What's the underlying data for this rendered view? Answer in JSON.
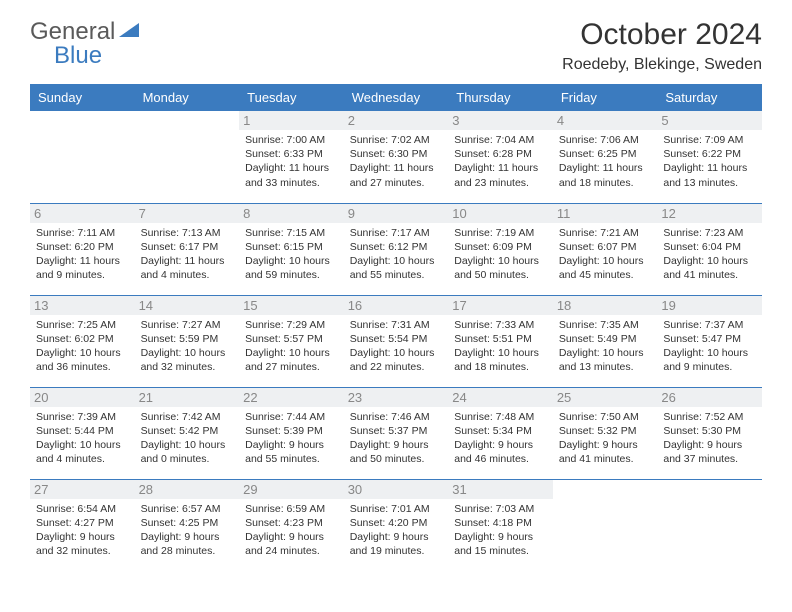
{
  "brand": {
    "text1": "General",
    "text2": "Blue",
    "color1": "#5a5a5a",
    "color2": "#3b7bbf"
  },
  "title": "October 2024",
  "location": "Roedeby, Blekinge, Sweden",
  "header_bg": "#3b7bbf",
  "header_fg": "#ffffff",
  "daynum_bg": "#eef0f2",
  "daynum_fg": "#888888",
  "border_color": "#3b7bbf",
  "day_names": [
    "Sunday",
    "Monday",
    "Tuesday",
    "Wednesday",
    "Thursday",
    "Friday",
    "Saturday"
  ],
  "weeks": [
    [
      null,
      null,
      {
        "n": "1",
        "sr": "7:00 AM",
        "ss": "6:33 PM",
        "dl": "11 hours and 33 minutes."
      },
      {
        "n": "2",
        "sr": "7:02 AM",
        "ss": "6:30 PM",
        "dl": "11 hours and 27 minutes."
      },
      {
        "n": "3",
        "sr": "7:04 AM",
        "ss": "6:28 PM",
        "dl": "11 hours and 23 minutes."
      },
      {
        "n": "4",
        "sr": "7:06 AM",
        "ss": "6:25 PM",
        "dl": "11 hours and 18 minutes."
      },
      {
        "n": "5",
        "sr": "7:09 AM",
        "ss": "6:22 PM",
        "dl": "11 hours and 13 minutes."
      }
    ],
    [
      {
        "n": "6",
        "sr": "7:11 AM",
        "ss": "6:20 PM",
        "dl": "11 hours and 9 minutes."
      },
      {
        "n": "7",
        "sr": "7:13 AM",
        "ss": "6:17 PM",
        "dl": "11 hours and 4 minutes."
      },
      {
        "n": "8",
        "sr": "7:15 AM",
        "ss": "6:15 PM",
        "dl": "10 hours and 59 minutes."
      },
      {
        "n": "9",
        "sr": "7:17 AM",
        "ss": "6:12 PM",
        "dl": "10 hours and 55 minutes."
      },
      {
        "n": "10",
        "sr": "7:19 AM",
        "ss": "6:09 PM",
        "dl": "10 hours and 50 minutes."
      },
      {
        "n": "11",
        "sr": "7:21 AM",
        "ss": "6:07 PM",
        "dl": "10 hours and 45 minutes."
      },
      {
        "n": "12",
        "sr": "7:23 AM",
        "ss": "6:04 PM",
        "dl": "10 hours and 41 minutes."
      }
    ],
    [
      {
        "n": "13",
        "sr": "7:25 AM",
        "ss": "6:02 PM",
        "dl": "10 hours and 36 minutes."
      },
      {
        "n": "14",
        "sr": "7:27 AM",
        "ss": "5:59 PM",
        "dl": "10 hours and 32 minutes."
      },
      {
        "n": "15",
        "sr": "7:29 AM",
        "ss": "5:57 PM",
        "dl": "10 hours and 27 minutes."
      },
      {
        "n": "16",
        "sr": "7:31 AM",
        "ss": "5:54 PM",
        "dl": "10 hours and 22 minutes."
      },
      {
        "n": "17",
        "sr": "7:33 AM",
        "ss": "5:51 PM",
        "dl": "10 hours and 18 minutes."
      },
      {
        "n": "18",
        "sr": "7:35 AM",
        "ss": "5:49 PM",
        "dl": "10 hours and 13 minutes."
      },
      {
        "n": "19",
        "sr": "7:37 AM",
        "ss": "5:47 PM",
        "dl": "10 hours and 9 minutes."
      }
    ],
    [
      {
        "n": "20",
        "sr": "7:39 AM",
        "ss": "5:44 PM",
        "dl": "10 hours and 4 minutes."
      },
      {
        "n": "21",
        "sr": "7:42 AM",
        "ss": "5:42 PM",
        "dl": "10 hours and 0 minutes."
      },
      {
        "n": "22",
        "sr": "7:44 AM",
        "ss": "5:39 PM",
        "dl": "9 hours and 55 minutes."
      },
      {
        "n": "23",
        "sr": "7:46 AM",
        "ss": "5:37 PM",
        "dl": "9 hours and 50 minutes."
      },
      {
        "n": "24",
        "sr": "7:48 AM",
        "ss": "5:34 PM",
        "dl": "9 hours and 46 minutes."
      },
      {
        "n": "25",
        "sr": "7:50 AM",
        "ss": "5:32 PM",
        "dl": "9 hours and 41 minutes."
      },
      {
        "n": "26",
        "sr": "7:52 AM",
        "ss": "5:30 PM",
        "dl": "9 hours and 37 minutes."
      }
    ],
    [
      {
        "n": "27",
        "sr": "6:54 AM",
        "ss": "4:27 PM",
        "dl": "9 hours and 32 minutes."
      },
      {
        "n": "28",
        "sr": "6:57 AM",
        "ss": "4:25 PM",
        "dl": "9 hours and 28 minutes."
      },
      {
        "n": "29",
        "sr": "6:59 AM",
        "ss": "4:23 PM",
        "dl": "9 hours and 24 minutes."
      },
      {
        "n": "30",
        "sr": "7:01 AM",
        "ss": "4:20 PM",
        "dl": "9 hours and 19 minutes."
      },
      {
        "n": "31",
        "sr": "7:03 AM",
        "ss": "4:18 PM",
        "dl": "9 hours and 15 minutes."
      },
      null,
      null
    ]
  ],
  "labels": {
    "sunrise": "Sunrise:",
    "sunset": "Sunset:",
    "daylight": "Daylight:"
  }
}
